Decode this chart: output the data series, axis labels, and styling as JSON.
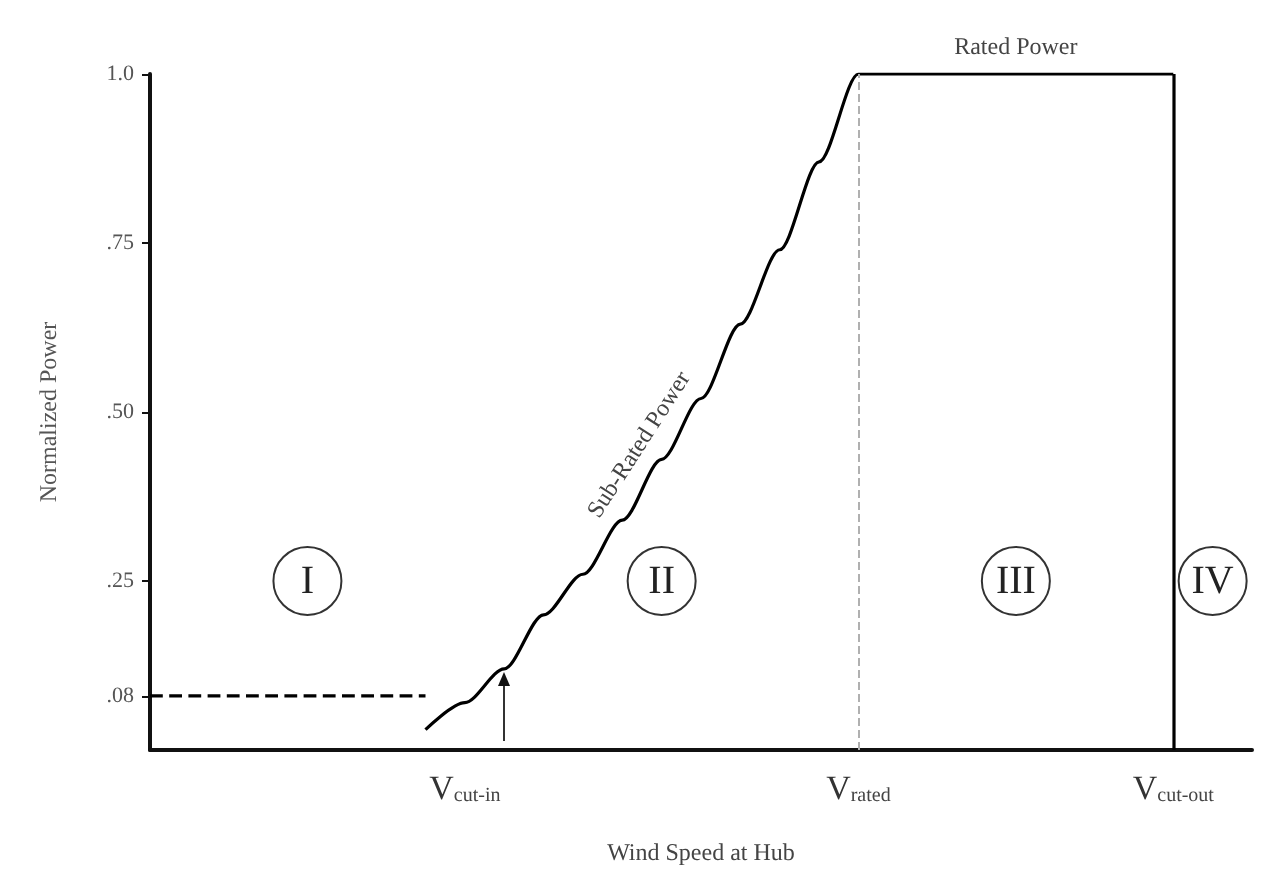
{
  "chart_data": {
    "type": "line",
    "xlabel": "Wind Speed at Hub",
    "ylabel": "Normalized Power",
    "categories": [
      null,
      null,
      null,
      null,
      null,
      null,
      null,
      null,
      "V$_{cut-in}$",
      null,
      null,
      null,
      null,
      null,
      null,
      null,
      null,
      null,
      "V$_{rated}$",
      null,
      null,
      null,
      null,
      null,
      null,
      null,
      "V$_{cut-out}$",
      null,
      null
    ],
    "ylim": [
      0,
      1
    ],
    "yticks": [
      {
        "value": 0.08,
        "label": ".08"
      },
      {
        "value": 0.25,
        "label": ".25"
      },
      {
        "value": 0.5,
        "label": ".50"
      },
      {
        "value": 0.75,
        "label": ".75"
      },
      {
        "value": 1,
        "label": "1.0"
      }
    ],
    "series": [
      {
        "color": "#000000",
        "line_style": "solid",
        "values": [
          null,
          null,
          null,
          null,
          null,
          null,
          null,
          0.03,
          0.07,
          0.12,
          0.2,
          0.26,
          0.34,
          0.43,
          0.52,
          0.63,
          0.74,
          0.87,
          1.0,
          1.0,
          1.0,
          1.0,
          1.0,
          1.0,
          1.0,
          1.0,
          1.0,
          null,
          null
        ]
      },
      {
        "color": "#000000",
        "line_style": "dashed",
        "values": [
          0.08,
          0.08,
          0.08,
          0.08,
          0.08,
          0.08,
          0.08,
          0.08,
          null,
          null,
          null,
          null,
          null,
          null,
          null,
          null,
          null,
          null,
          null,
          null,
          null,
          null,
          null,
          null,
          null,
          null,
          null,
          null,
          null
        ]
      }
    ],
    "ref_lines": [
      {
        "axis": "x",
        "value": "V$_{rated}$",
        "color": "#b0b0b0",
        "line_style": "dashed"
      },
      {
        "axis": "x",
        "value": "V$_{cut-out}$",
        "color": "#000000",
        "line_style": "solid"
      }
    ],
    "annotations": [
      "I",
      "II",
      "III",
      "IV",
      "Sub-Rated Power",
      "Rated Power"
    ],
    "grid": false,
    "marker": "none"
  }
}
